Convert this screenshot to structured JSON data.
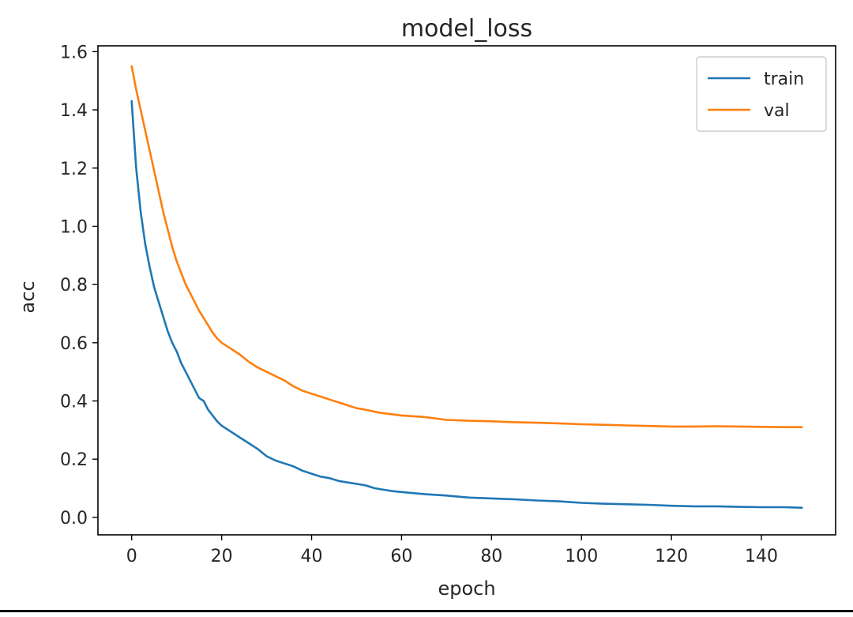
{
  "chart_data": {
    "type": "line",
    "title": "model_loss",
    "xlabel": "epoch",
    "ylabel": "acc",
    "xlim": [
      -7.5,
      156.5
    ],
    "ylim": [
      -0.06,
      1.62
    ],
    "xticks": [
      0,
      20,
      40,
      60,
      80,
      100,
      120,
      140
    ],
    "yticks": [
      0.0,
      0.2,
      0.4,
      0.6,
      0.8,
      1.0,
      1.2,
      1.4,
      1.6
    ],
    "xtick_labels": [
      "0",
      "20",
      "40",
      "60",
      "80",
      "100",
      "120",
      "140"
    ],
    "ytick_labels": [
      "0.0",
      "0.2",
      "0.4",
      "0.6",
      "0.8",
      "1.0",
      "1.2",
      "1.4",
      "1.6"
    ],
    "grid": false,
    "legend_position": "top-right",
    "series": [
      {
        "name": "train",
        "color": "#1f77b4",
        "points": [
          [
            0,
            1.43
          ],
          [
            1,
            1.2
          ],
          [
            2,
            1.05
          ],
          [
            3,
            0.94
          ],
          [
            4,
            0.86
          ],
          [
            5,
            0.79
          ],
          [
            6,
            0.74
          ],
          [
            7,
            0.69
          ],
          [
            8,
            0.64
          ],
          [
            9,
            0.6
          ],
          [
            10,
            0.57
          ],
          [
            11,
            0.53
          ],
          [
            12,
            0.5
          ],
          [
            13,
            0.47
          ],
          [
            14,
            0.44
          ],
          [
            15,
            0.41
          ],
          [
            16,
            0.4
          ],
          [
            17,
            0.37
          ],
          [
            18,
            0.35
          ],
          [
            19,
            0.33
          ],
          [
            20,
            0.315
          ],
          [
            22,
            0.295
          ],
          [
            24,
            0.275
          ],
          [
            26,
            0.255
          ],
          [
            28,
            0.235
          ],
          [
            30,
            0.21
          ],
          [
            32,
            0.195
          ],
          [
            34,
            0.185
          ],
          [
            36,
            0.175
          ],
          [
            38,
            0.16
          ],
          [
            40,
            0.15
          ],
          [
            42,
            0.14
          ],
          [
            44,
            0.135
          ],
          [
            46,
            0.125
          ],
          [
            48,
            0.12
          ],
          [
            50,
            0.115
          ],
          [
            52,
            0.11
          ],
          [
            54,
            0.1
          ],
          [
            56,
            0.095
          ],
          [
            58,
            0.09
          ],
          [
            60,
            0.087
          ],
          [
            65,
            0.08
          ],
          [
            70,
            0.075
          ],
          [
            75,
            0.068
          ],
          [
            80,
            0.065
          ],
          [
            85,
            0.062
          ],
          [
            90,
            0.058
          ],
          [
            95,
            0.055
          ],
          [
            100,
            0.05
          ],
          [
            105,
            0.047
          ],
          [
            110,
            0.045
          ],
          [
            115,
            0.043
          ],
          [
            120,
            0.04
          ],
          [
            125,
            0.038
          ],
          [
            130,
            0.038
          ],
          [
            135,
            0.036
          ],
          [
            140,
            0.035
          ],
          [
            145,
            0.035
          ],
          [
            149,
            0.033
          ]
        ]
      },
      {
        "name": "val",
        "color": "#ff7f0e",
        "points": [
          [
            0,
            1.55
          ],
          [
            1,
            1.47
          ],
          [
            2,
            1.4
          ],
          [
            3,
            1.33
          ],
          [
            4,
            1.26
          ],
          [
            5,
            1.19
          ],
          [
            6,
            1.12
          ],
          [
            7,
            1.05
          ],
          [
            8,
            0.99
          ],
          [
            9,
            0.93
          ],
          [
            10,
            0.88
          ],
          [
            11,
            0.84
          ],
          [
            12,
            0.8
          ],
          [
            13,
            0.77
          ],
          [
            14,
            0.74
          ],
          [
            15,
            0.71
          ],
          [
            16,
            0.685
          ],
          [
            17,
            0.66
          ],
          [
            18,
            0.635
          ],
          [
            19,
            0.615
          ],
          [
            20,
            0.6
          ],
          [
            22,
            0.58
          ],
          [
            24,
            0.56
          ],
          [
            26,
            0.535
          ],
          [
            28,
            0.515
          ],
          [
            30,
            0.5
          ],
          [
            32,
            0.485
          ],
          [
            34,
            0.47
          ],
          [
            36,
            0.45
          ],
          [
            38,
            0.435
          ],
          [
            40,
            0.425
          ],
          [
            42,
            0.415
          ],
          [
            44,
            0.405
          ],
          [
            46,
            0.395
          ],
          [
            48,
            0.385
          ],
          [
            50,
            0.375
          ],
          [
            52,
            0.37
          ],
          [
            55,
            0.36
          ],
          [
            60,
            0.35
          ],
          [
            65,
            0.345
          ],
          [
            70,
            0.335
          ],
          [
            75,
            0.332
          ],
          [
            80,
            0.33
          ],
          [
            85,
            0.327
          ],
          [
            90,
            0.325
          ],
          [
            95,
            0.323
          ],
          [
            100,
            0.32
          ],
          [
            105,
            0.318
          ],
          [
            110,
            0.316
          ],
          [
            115,
            0.314
          ],
          [
            120,
            0.312
          ],
          [
            125,
            0.312
          ],
          [
            130,
            0.313
          ],
          [
            135,
            0.312
          ],
          [
            140,
            0.311
          ],
          [
            145,
            0.31
          ],
          [
            149,
            0.31
          ]
        ]
      }
    ]
  }
}
